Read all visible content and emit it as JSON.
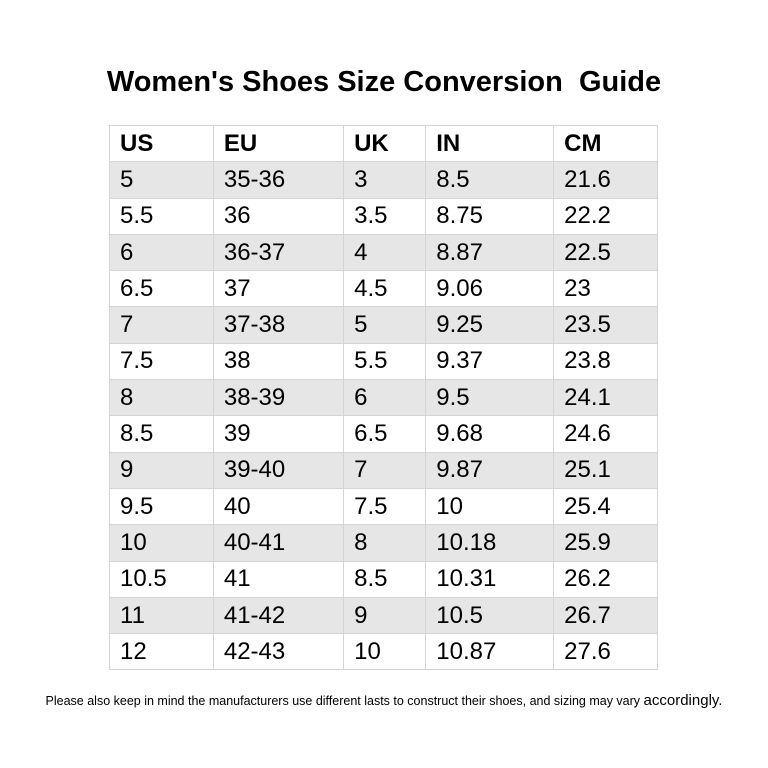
{
  "title": "Women's Shoes Size Conversion  Guide",
  "table": {
    "headers": [
      "US",
      "EU",
      "UK",
      "IN",
      "CM"
    ],
    "rows": [
      [
        "5",
        "35-36",
        "3",
        "8.5",
        "21.6"
      ],
      [
        "5.5",
        "36",
        "3.5",
        "8.75",
        "22.2"
      ],
      [
        "6",
        "36-37",
        "4",
        "8.87",
        "22.5"
      ],
      [
        "6.5",
        "37",
        "4.5",
        "9.06",
        "23"
      ],
      [
        "7",
        "37-38",
        "5",
        "9.25",
        "23.5"
      ],
      [
        "7.5",
        "38",
        "5.5",
        "9.37",
        "23.8"
      ],
      [
        "8",
        "38-39",
        "6",
        "9.5",
        "24.1"
      ],
      [
        "8.5",
        "39",
        "6.5",
        "9.68",
        "24.6"
      ],
      [
        "9",
        "39-40",
        "7",
        "9.87",
        "25.1"
      ],
      [
        "9.5",
        "40",
        "7.5",
        "10",
        "25.4"
      ],
      [
        "10",
        "40-41",
        "8",
        "10.18",
        "25.9"
      ],
      [
        "10.5",
        "41",
        "8.5",
        "10.31",
        "26.2"
      ],
      [
        "11",
        "41-42",
        "9",
        "10.5",
        "26.7"
      ],
      [
        "12",
        "42-43",
        "10",
        "10.87",
        "27.6"
      ]
    ]
  },
  "note": {
    "text": "Please also keep in mind the manufacturers use different lasts to construct their shoes, and sizing may vary ",
    "last_word": "accordingly."
  },
  "colors": {
    "shaded_row": "#e6e6e6",
    "border": "#d4d4d4"
  }
}
